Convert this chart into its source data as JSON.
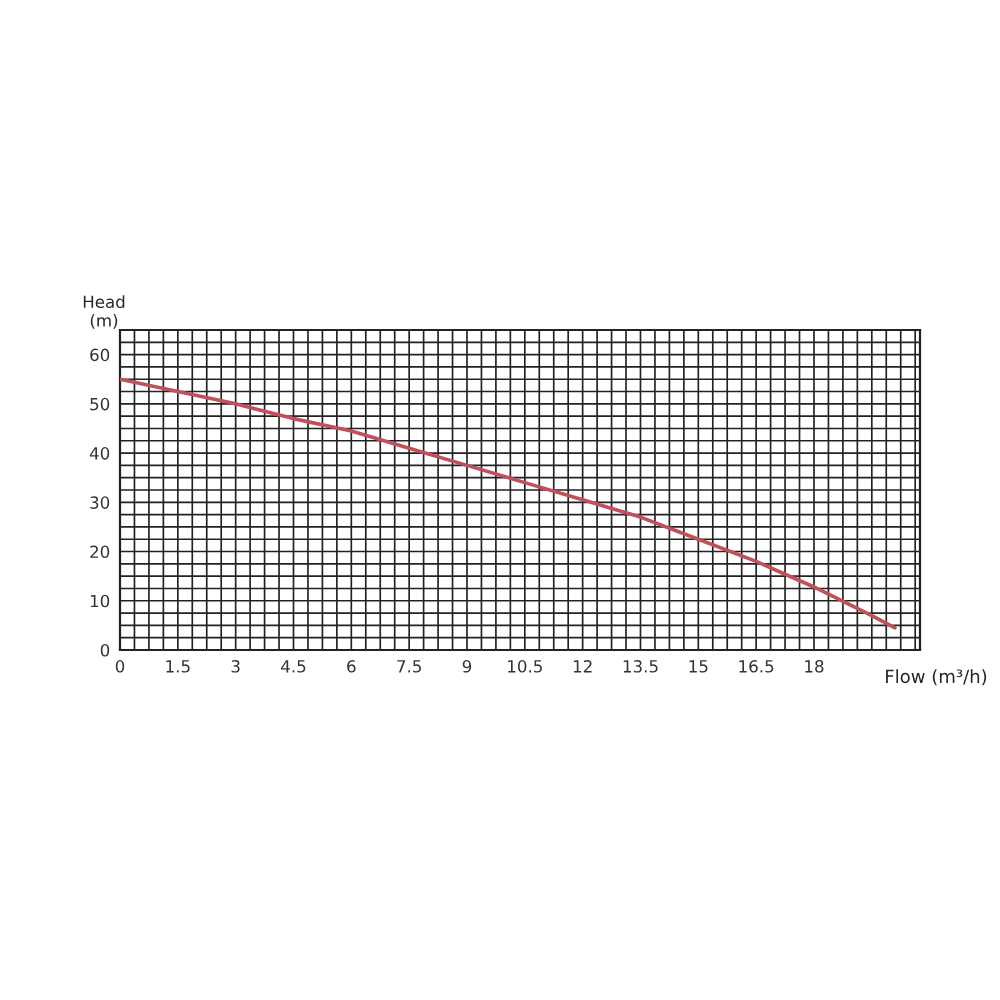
{
  "chart_data": {
    "type": "line",
    "xlabel": "Flow (m³/h)",
    "ylabel": "Head\n(m)",
    "x": [
      0,
      1.5,
      3,
      4.5,
      6,
      7.5,
      9,
      10.5,
      12,
      13.5,
      15,
      16.5,
      18,
      19.5,
      20.1
    ],
    "series": [
      {
        "color": "#c0505a",
        "values": [
          55,
          52.5,
          50,
          47,
          44.5,
          41,
          37.5,
          34,
          30.5,
          27,
          22.5,
          18,
          12.8,
          7,
          4.5
        ]
      }
    ],
    "xlim": [
      0,
      20.75
    ],
    "ylim": [
      0,
      65
    ],
    "xticks": [
      0,
      1.5,
      3,
      4.5,
      6,
      7.5,
      9,
      10.5,
      12,
      13.5,
      15,
      16.5,
      18
    ],
    "yticks": [
      0,
      10,
      20,
      30,
      40,
      50,
      60
    ],
    "grid": true,
    "marker": "none",
    "line_style": "solid"
  }
}
